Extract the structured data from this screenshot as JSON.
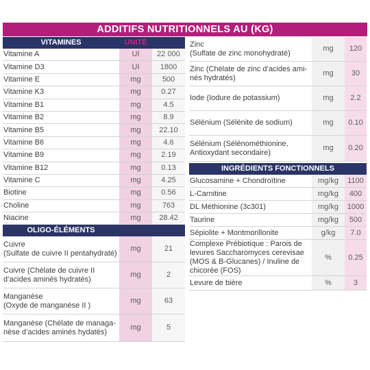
{
  "title": "ADDITIFS NUTRITIONNELS AU (KG)",
  "vitamins": {
    "header": "VITAMINES",
    "unit_header": "UNITÉ",
    "rows": [
      {
        "name": "Vitamine A",
        "unit": "UI",
        "value": "22 000"
      },
      {
        "name": "Vitamine D3",
        "unit": "UI",
        "value": "1800"
      },
      {
        "name": "Vitamine E",
        "unit": "mg",
        "value": "500"
      },
      {
        "name": "Vitamine K3",
        "unit": "mg",
        "value": "0.27"
      },
      {
        "name": "Vitamine B1",
        "unit": "mg",
        "value": "4.5"
      },
      {
        "name": "Vitamine B2",
        "unit": "mg",
        "value": "8.9"
      },
      {
        "name": "Vitamine B5",
        "unit": "mg",
        "value": "22.10"
      },
      {
        "name": "Vitamine B6",
        "unit": "mg",
        "value": "4.6"
      },
      {
        "name": "Vitamine B9",
        "unit": "mg",
        "value": "2.19"
      },
      {
        "name": "Vitamine B12",
        "unit": "mg",
        "value": "0.13"
      },
      {
        "name": "Vitamine C",
        "unit": "mg",
        "value": "4.25"
      },
      {
        "name": "Biotine",
        "unit": "mg",
        "value": "0.56"
      },
      {
        "name": "Choline",
        "unit": "mg",
        "value": "763"
      },
      {
        "name": "Niacine",
        "unit": "mg",
        "value": "28.42"
      }
    ]
  },
  "oligo": {
    "header": "OLIGO-ÉLÉMENTS",
    "rows": [
      {
        "name": "Cuivre\n(Sulfate de cuivre II pentahydraté)",
        "unit": "mg",
        "value": "21"
      },
      {
        "name": "Cuivre (Chélate de cuivre II d’acides aminés hydratés)",
        "unit": "mg",
        "value": "2"
      },
      {
        "name": "Manganèse\n(Oxyde de manganèse II )",
        "unit": "mg",
        "value": "63"
      },
      {
        "name": "Manganèse (Chélate de managa-\nnèse d’acides aminés hydatés)",
        "unit": "mg",
        "value": "5"
      }
    ]
  },
  "oligo_right": {
    "rows": [
      {
        "name": "Zinc\n(Sulfate de zinc monohydraté)",
        "unit": "mg",
        "value": "120"
      },
      {
        "name": "Zinc (Chélate de zinc d’acides ami-\nnés hydratés)",
        "unit": "mg",
        "value": "30"
      },
      {
        "name": "Iode (Iodure de potassium)",
        "unit": "mg",
        "value": "2.2"
      },
      {
        "name": "Sélénium (Sélénite de sodium)",
        "unit": "mg",
        "value": "0.10"
      },
      {
        "name": "Sélénium (Sélénométhionine,\nAntioxydant secondaire)",
        "unit": "mg",
        "value": "0.20"
      }
    ]
  },
  "functional": {
    "header": "INGRÉDIENTS FONCTIONNELS",
    "rows": [
      {
        "name": "Glucosamine + Chondroïtine",
        "unit": "mg/kg",
        "value": "1100"
      },
      {
        "name": "L-Carnitine",
        "unit": "mg/kg",
        "value": "400"
      },
      {
        "name": "DL Méthionine (3c301)",
        "unit": "mg/kg",
        "value": "1000"
      },
      {
        "name": "Taurine",
        "unit": "mg/kg",
        "value": "500"
      },
      {
        "name": "Sépiolite + Montmorillonite",
        "unit": "g/kg",
        "value": "7.0"
      },
      {
        "name": "Complexe Prébiotique : Parois de levures Saccharomyces cerevisae (MOS & B-Glucanes) / Inuline de chicorée (FOS)",
        "unit": "%",
        "value": "0.25"
      },
      {
        "name": "Levure de bière",
        "unit": "%",
        "value": "3"
      }
    ]
  }
}
